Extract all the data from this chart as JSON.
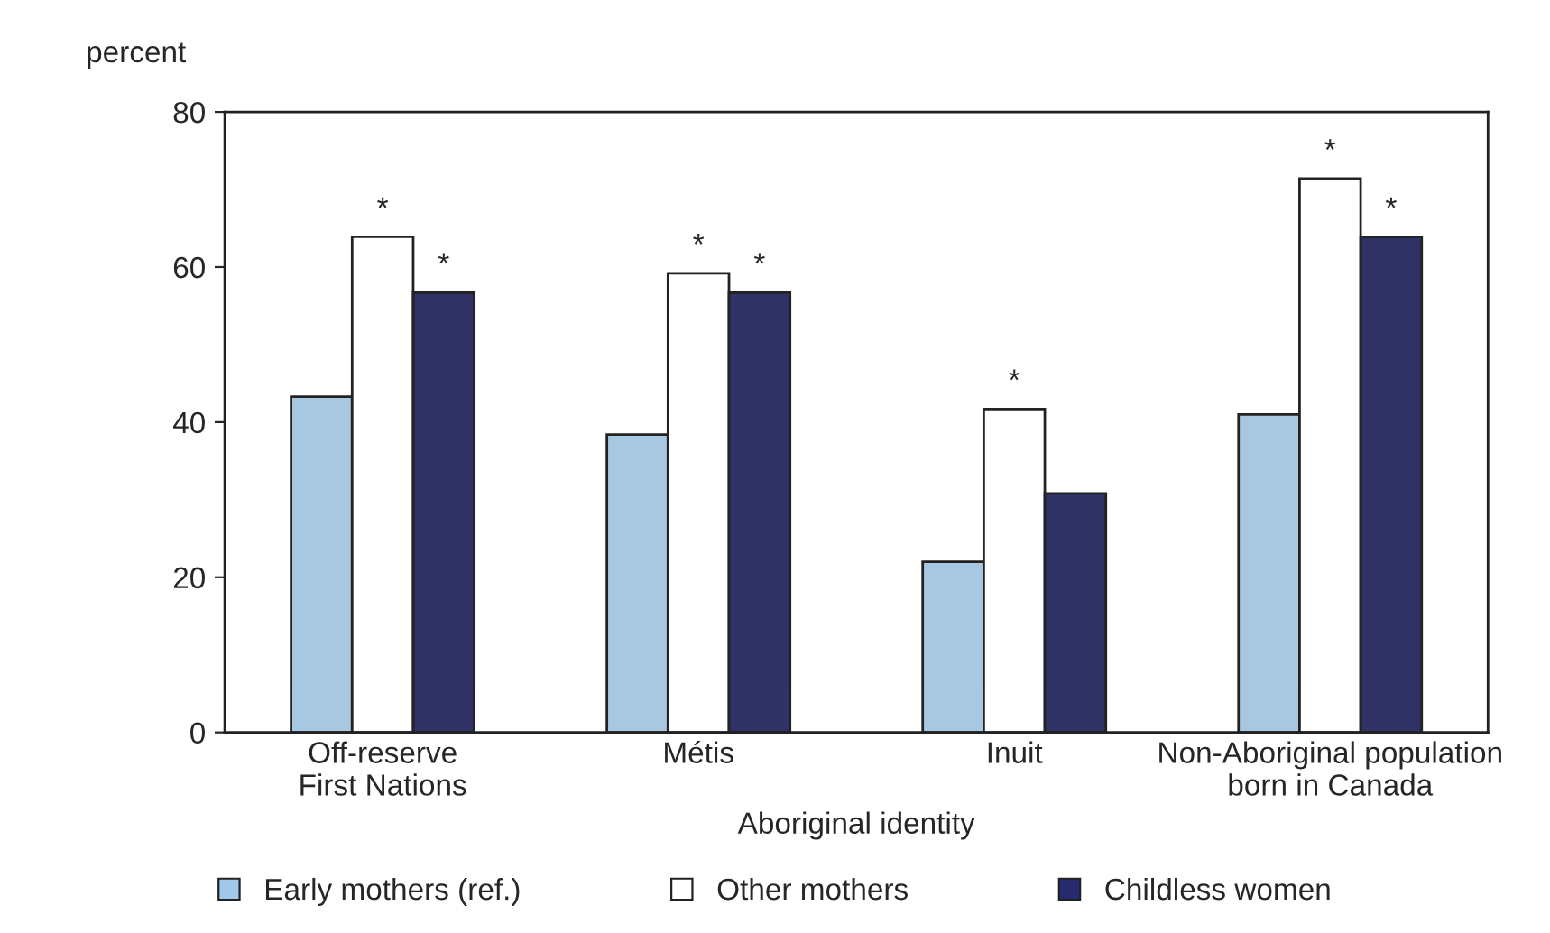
{
  "chart_data": {
    "type": "bar",
    "categories": [
      "Off-reserve\nFirst Nations",
      "Métis",
      "Inuit",
      "Non-Aboriginal population\nborn in Canada"
    ],
    "xlabel": "Aboriginal identity",
    "ylabel": "percent",
    "series": [
      {
        "name": "Early mothers (ref.)",
        "color": "#9fc8ea",
        "values": [
          43.3,
          38.4,
          22.0,
          41.0
        ]
      },
      {
        "name": "Other mothers",
        "color": "#ffffff",
        "values": [
          63.9,
          59.2,
          41.7,
          71.4
        ],
        "value_labels": [
          "*",
          "*",
          "*",
          "*"
        ]
      },
      {
        "name": "Childless women",
        "color": "#272a6f",
        "values": [
          56.7,
          56.7,
          30.8,
          63.9
        ],
        "value_labels": [
          "*",
          "*",
          null,
          "*"
        ]
      }
    ],
    "ylim": [
      0,
      80
    ],
    "yticks": [
      0,
      20,
      40,
      60,
      80
    ],
    "grid": false,
    "legend": "bottom"
  }
}
